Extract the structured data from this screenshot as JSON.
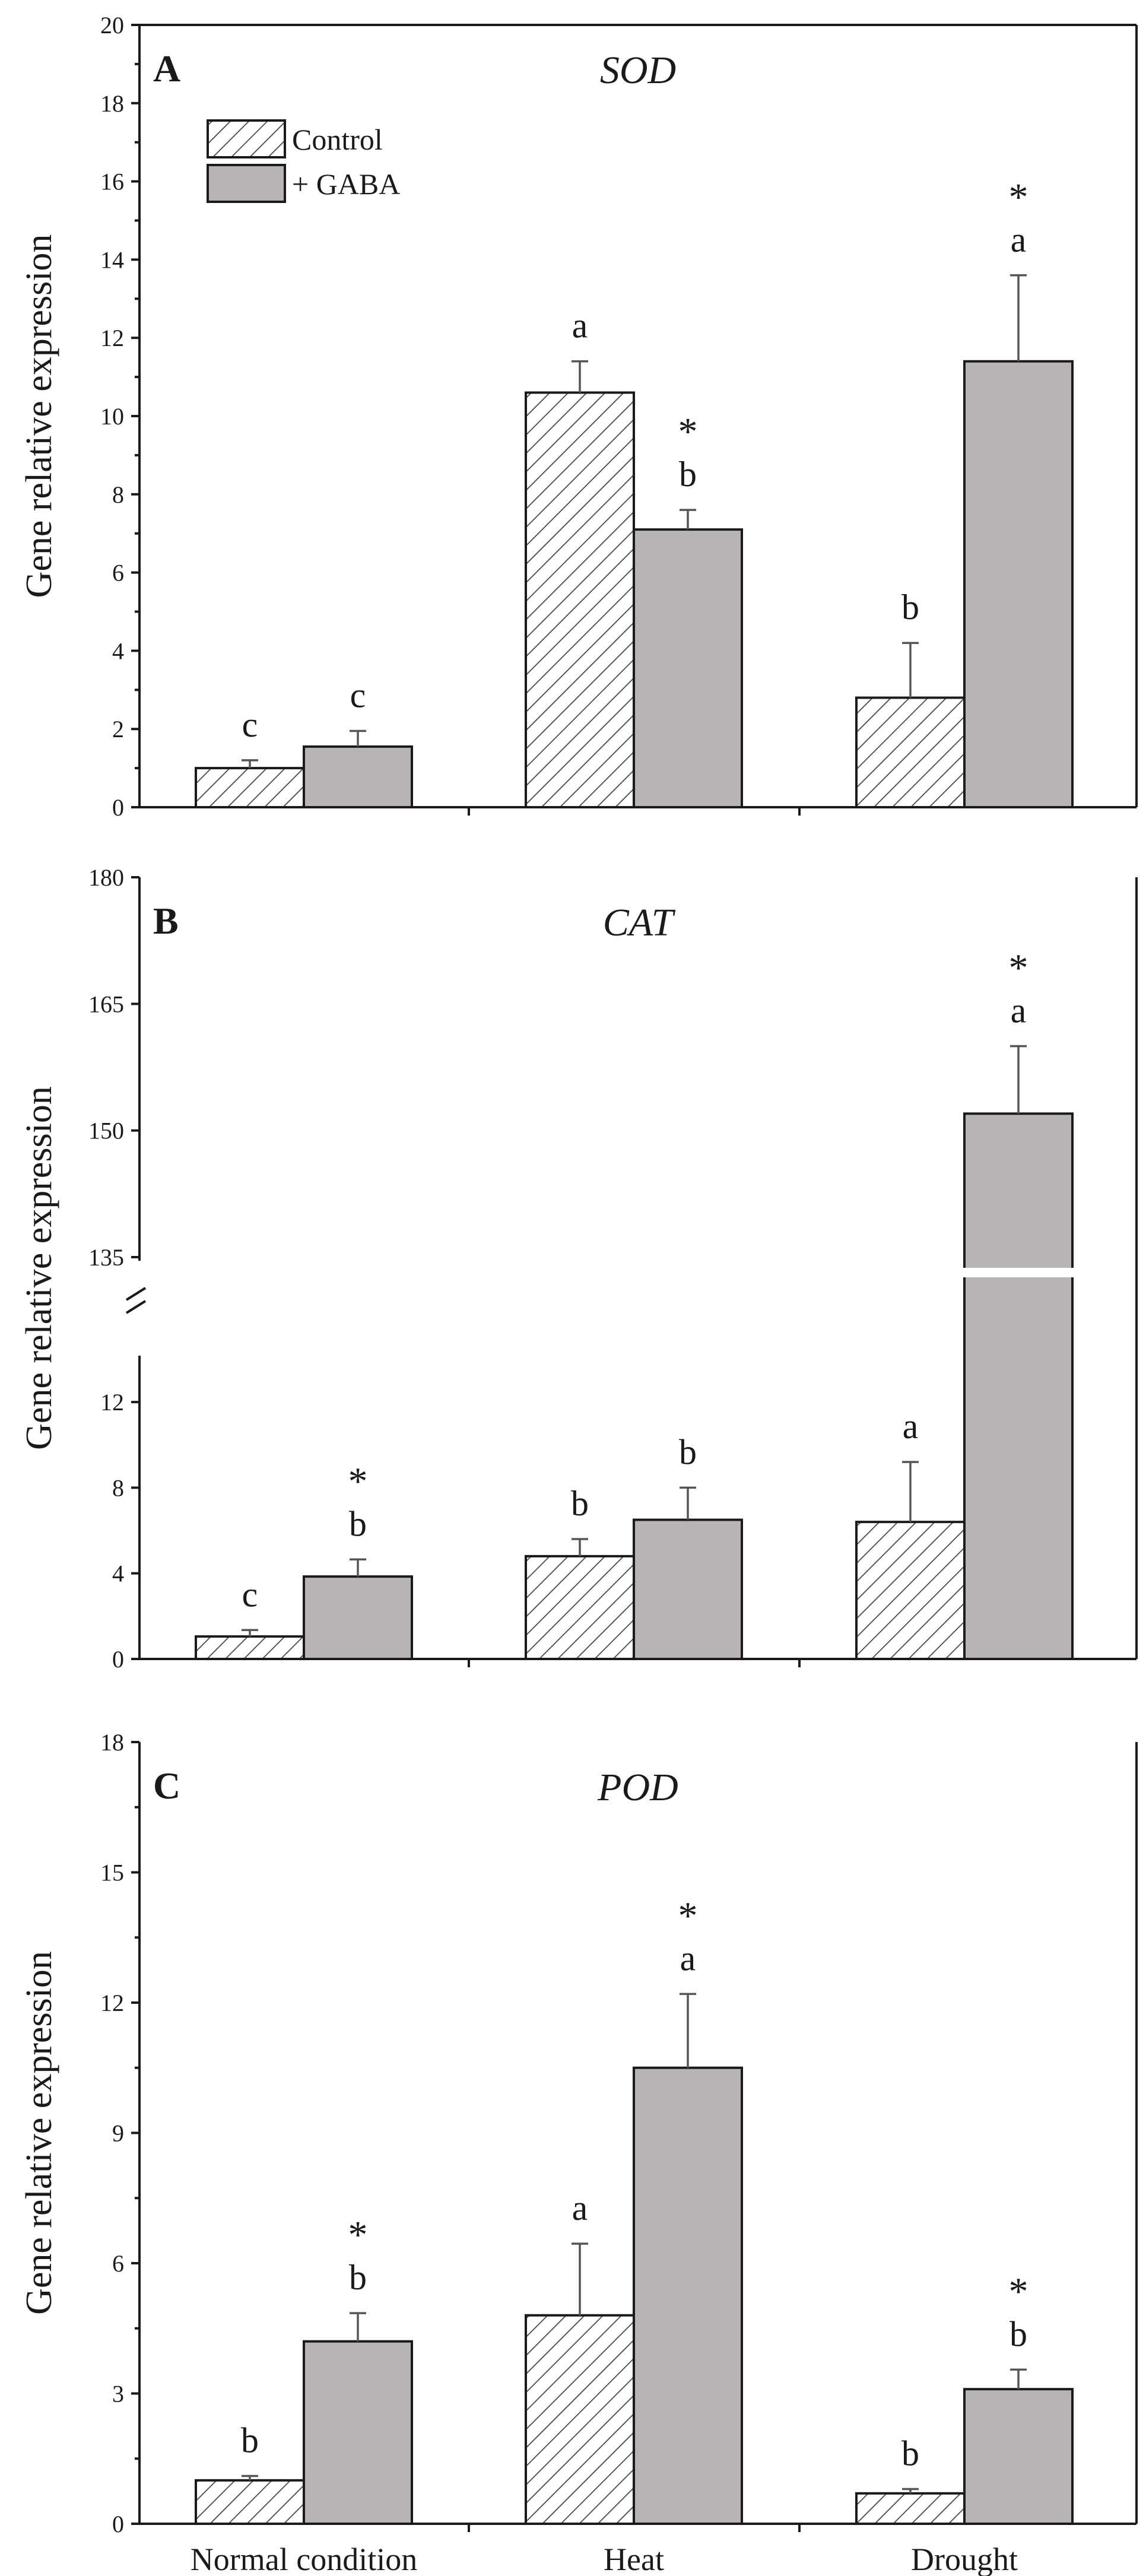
{
  "colors": {
    "gaba_fill": "#b9b4b4",
    "axis": "#1a1a1a",
    "errorbar": "#555555",
    "hatch": "#444444"
  },
  "legend": {
    "control": "Control",
    "gaba": "+ GABA"
  },
  "x_category_labels": [
    "Normal condition",
    "Heat",
    "Drought"
  ],
  "chart_data": [
    {
      "panel": "A",
      "title": "SOD",
      "type": "bar",
      "ylabel": "Gene relative expression",
      "categories": [
        "Normal condition",
        "Heat",
        "Drought"
      ],
      "ylim": [
        0,
        20
      ],
      "yticks": [
        0,
        2,
        4,
        6,
        8,
        10,
        12,
        14,
        16,
        18,
        20
      ],
      "tick_labels": [
        "0",
        "2",
        "4",
        "6",
        "8",
        "10",
        "12",
        "14",
        "16",
        "18",
        "20"
      ],
      "series": [
        {
          "name": "Control",
          "values": [
            1.0,
            10.6,
            2.8
          ],
          "errors": [
            0.2,
            0.8,
            1.4
          ],
          "letters": [
            "c",
            "a",
            "b"
          ],
          "stars": [
            "",
            "",
            ""
          ]
        },
        {
          "name": "+ GABA",
          "values": [
            1.55,
            7.1,
            11.4
          ],
          "errors": [
            0.4,
            0.5,
            2.2
          ],
          "letters": [
            "c",
            "b",
            "a"
          ],
          "stars": [
            "",
            "*",
            "*"
          ]
        }
      ]
    },
    {
      "panel": "B",
      "title": "CAT",
      "type": "bar",
      "ylabel": "Gene relative expression",
      "categories": [
        "Normal condition",
        "Heat",
        "Drought"
      ],
      "axis_break": {
        "lower_range": [
          0,
          14
        ],
        "upper_range": [
          135,
          180
        ]
      },
      "yticks": [
        0,
        4,
        8,
        12,
        135,
        150,
        165,
        180
      ],
      "tick_labels": [
        "0",
        "4",
        "8",
        "12",
        "135",
        "150",
        "165",
        "180"
      ],
      "series": [
        {
          "name": "Control",
          "values": [
            1.05,
            4.8,
            6.4
          ],
          "errors": [
            0.3,
            0.8,
            2.8
          ],
          "letters": [
            "c",
            "b",
            "a"
          ],
          "stars": [
            "",
            "",
            ""
          ]
        },
        {
          "name": "+ GABA",
          "values": [
            3.85,
            6.5,
            152.0
          ],
          "errors": [
            0.8,
            1.5,
            8.0
          ],
          "letters": [
            "b",
            "b",
            "a"
          ],
          "stars": [
            "*",
            "",
            "*"
          ]
        }
      ]
    },
    {
      "panel": "C",
      "title": "POD",
      "type": "bar",
      "ylabel": "Gene relative expression",
      "categories": [
        "Normal condition",
        "Heat",
        "Drought"
      ],
      "ylim": [
        0,
        18
      ],
      "yticks": [
        0,
        3,
        6,
        9,
        12,
        15,
        18
      ],
      "tick_labels": [
        "0",
        "3",
        "6",
        "9",
        "12",
        "15",
        "18"
      ],
      "series": [
        {
          "name": "Control",
          "values": [
            1.0,
            4.8,
            0.7
          ],
          "errors": [
            0.1,
            1.65,
            0.1
          ],
          "letters": [
            "b",
            "a",
            "b"
          ],
          "stars": [
            "",
            "",
            ""
          ]
        },
        {
          "name": "+ GABA",
          "values": [
            4.2,
            10.5,
            3.1
          ],
          "errors": [
            0.65,
            1.7,
            0.45
          ],
          "letters": [
            "b",
            "a",
            "b"
          ],
          "stars": [
            "*",
            "*",
            "*"
          ]
        }
      ]
    }
  ]
}
